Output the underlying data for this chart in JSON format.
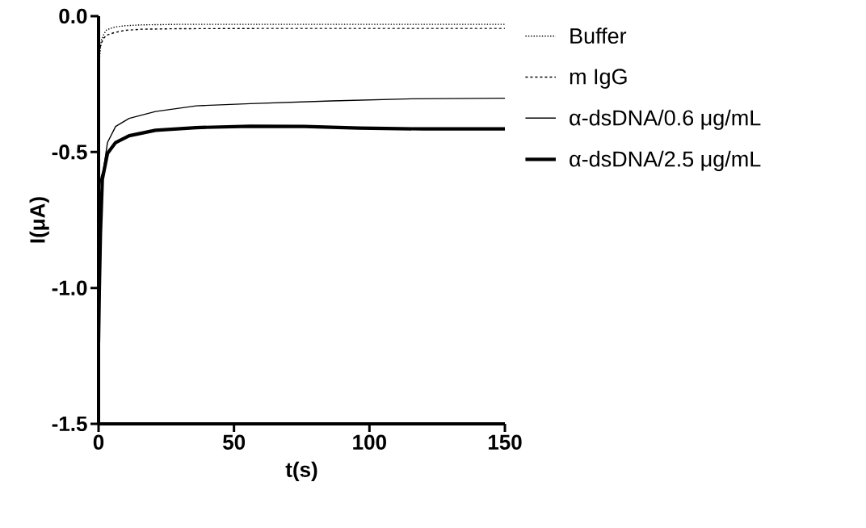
{
  "chart_data": {
    "type": "line",
    "xlabel": "t(s)",
    "ylabel": "I(μA)",
    "xlim": [
      0,
      150
    ],
    "ylim": [
      -1.5,
      0
    ],
    "xticks": [
      0,
      50,
      100,
      150
    ],
    "yticks": [
      {
        "value": -1.5,
        "label": "-1.5"
      },
      {
        "value": -1.0,
        "label": "-1.0"
      },
      {
        "value": -0.5,
        "label": "-0.5"
      },
      {
        "value": 0,
        "label": "0.0"
      }
    ],
    "grid": false,
    "legend": "right",
    "marker": "none",
    "series": [
      {
        "name": "Buffer",
        "color": "#000000",
        "line_style": "dotted",
        "x": [
          0,
          0.5,
          1,
          2,
          3,
          6,
          10,
          16,
          30,
          60,
          100,
          150
        ],
        "values": [
          -0.2,
          -0.14,
          -0.09,
          -0.065,
          -0.05,
          -0.04,
          -0.035,
          -0.032,
          -0.03,
          -0.03,
          -0.03,
          -0.03
        ]
      },
      {
        "name": "m IgG",
        "color": "#000000",
        "line_style": "dashed",
        "x": [
          0,
          0.5,
          1,
          2,
          3,
          6,
          10,
          16,
          30,
          60,
          100,
          150
        ],
        "values": [
          -0.15,
          -0.12,
          -0.1,
          -0.08,
          -0.07,
          -0.06,
          -0.052,
          -0.048,
          -0.046,
          -0.045,
          -0.045,
          -0.045
        ]
      },
      {
        "name": "α-dsDNA/0.6 μg/mL",
        "color": "#000000",
        "line_style": "solid",
        "x": [
          0,
          0.5,
          1,
          1.8,
          3.3,
          6.3,
          11.3,
          21,
          36,
          56,
          86,
          116,
          150
        ],
        "values": [
          -0.65,
          -0.62,
          -0.59,
          -0.565,
          -0.465,
          -0.406,
          -0.376,
          -0.351,
          -0.33,
          -0.322,
          -0.312,
          -0.304,
          -0.302
        ]
      },
      {
        "name": "α-dsDNA/2.5 μg/mL",
        "color": "#000000",
        "line_style": "solid",
        "x": [
          0,
          0.3,
          0.7,
          1.4,
          3.3,
          6.3,
          11.3,
          21,
          36,
          56,
          76,
          96,
          120,
          150
        ],
        "values": [
          -1.2,
          -1.0,
          -0.8,
          -0.6,
          -0.505,
          -0.465,
          -0.44,
          -0.42,
          -0.41,
          -0.405,
          -0.406,
          -0.412,
          -0.415,
          -0.415
        ]
      }
    ]
  }
}
